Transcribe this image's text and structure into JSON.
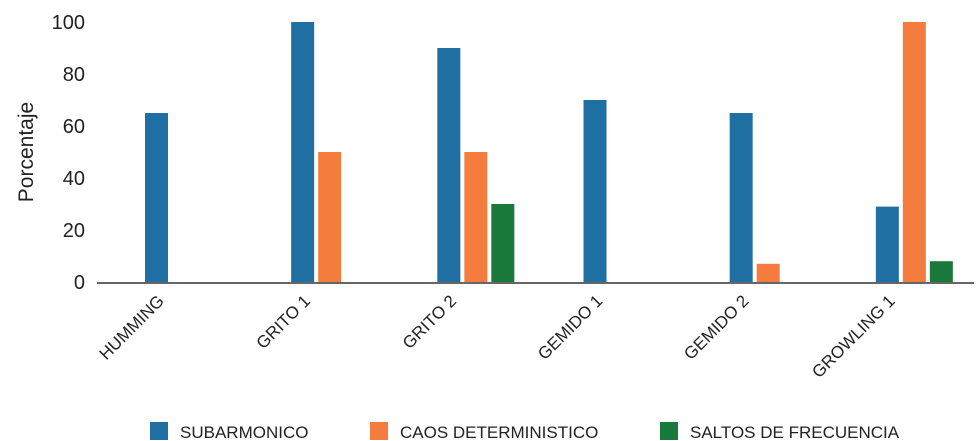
{
  "chart_data": {
    "type": "bar",
    "title": "",
    "xlabel": "",
    "ylabel": "Porcentaje",
    "ylim": [
      0,
      100
    ],
    "yticks": [
      0,
      20,
      40,
      60,
      80,
      100
    ],
    "grid": false,
    "legend_position": "bottom",
    "categories": [
      "HUMMING",
      "GRITO 1",
      "GRITO 2",
      "GEMIDO 1",
      "GEMIDO 2",
      "GROWLING 1"
    ],
    "series": [
      {
        "name": "SUBARMONICO",
        "color": "#1f6fa3",
        "values": [
          65,
          100,
          90,
          70,
          65,
          29
        ]
      },
      {
        "name": "CAOS DETERMINISTICO",
        "color": "#f47c3c",
        "values": [
          0,
          50,
          50,
          0,
          7,
          100
        ]
      },
      {
        "name": "SALTOS DE FRECUENCIA",
        "color": "#1a7a3c",
        "values": [
          0,
          0,
          30,
          0,
          0,
          8
        ]
      }
    ]
  }
}
